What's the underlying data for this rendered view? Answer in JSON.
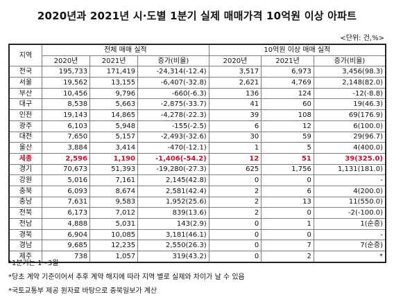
{
  "title": "2020년과 2021년 시·도별 1분기 실제 매매가격 10억원 이상 아파트",
  "unit_label": "<단위: 건,%>",
  "header": {
    "region": "지역",
    "group_all": "전체 매매 실적",
    "group_1b": "10억원 이상 매매 실적",
    "col_2020": "2020년",
    "col_2021": "2021년",
    "col_change": "증가(비율)"
  },
  "highlight_color": "#c8102e",
  "rows": [
    {
      "region": "전국",
      "a2020": "195,733",
      "a2021": "171,419",
      "achg": "-24,314(-12.4)",
      "b2020": "3,517",
      "b2021": "6,973",
      "bchg": "3,456(98.3)",
      "hl": false
    },
    {
      "region": "서울",
      "a2020": "19,562",
      "a2021": "13,155",
      "achg": "-6,407(-32.8)",
      "b2020": "2,621",
      "b2021": "4,769",
      "bchg": "2,148(82.0)",
      "hl": false
    },
    {
      "region": "부산",
      "a2020": "10,456",
      "a2021": "9,796",
      "achg": "-660(-6.3)",
      "b2020": "136",
      "b2021": "124",
      "bchg": "-12(-8.8)",
      "hl": false
    },
    {
      "region": "대구",
      "a2020": "8,538",
      "a2021": "5,663",
      "achg": "-2,875(-33.7)",
      "b2020": "41",
      "b2021": "60",
      "bchg": "19(46.3)",
      "hl": false
    },
    {
      "region": "인천",
      "a2020": "19,143",
      "a2021": "14,865",
      "achg": "-4,278(-22.3)",
      "b2020": "39",
      "b2021": "108",
      "bchg": "69(176.9)",
      "hl": false
    },
    {
      "region": "광주",
      "a2020": "6,103",
      "a2021": "5,948",
      "achg": "-155(-2.5)",
      "b2020": "6",
      "b2021": "12",
      "bchg": "6(100.0)",
      "hl": false
    },
    {
      "region": "대전",
      "a2020": "7,650",
      "a2021": "5,157",
      "achg": "-2,493(-32.6)",
      "b2020": "30",
      "b2021": "59",
      "bchg": "29(96.7)",
      "hl": false
    },
    {
      "region": "울산",
      "a2020": "3,884",
      "a2021": "3,414",
      "achg": "-470(-12.1)",
      "b2020": "1",
      "b2021": "5",
      "bchg": "4(400.0)",
      "hl": false
    },
    {
      "region": "세종",
      "a2020": "2,596",
      "a2021": "1,190",
      "achg": "-1,406(-54.2)",
      "b2020": "12",
      "b2021": "51",
      "bchg": "39(325.0)",
      "hl": true
    },
    {
      "region": "경기",
      "a2020": "70,673",
      "a2021": "51,393",
      "achg": "-19,280(-27.3)",
      "b2020": "625",
      "b2021": "1,756",
      "bchg": "1,131(181.0)",
      "hl": false
    },
    {
      "region": "강원",
      "a2020": "5,016",
      "a2021": "7,161",
      "achg": "2,145(42.8)",
      "b2020": "0",
      "b2021": "0",
      "bchg": "-",
      "hl": false
    },
    {
      "region": "충북",
      "a2020": "6,093",
      "a2021": "8,674",
      "achg": "2,581(42.4)",
      "b2020": "2",
      "b2021": "6",
      "bchg": "4(200.0)",
      "hl": false
    },
    {
      "region": "충남",
      "a2020": "7,631",
      "a2021": "9,583",
      "achg": "1,952(25.6)",
      "b2020": "2",
      "b2021": "13",
      "bchg": "11(550.0)",
      "hl": false
    },
    {
      "region": "전북",
      "a2020": "6,173",
      "a2021": "7,012",
      "achg": "839(13.6)",
      "b2020": "2",
      "b2021": "0",
      "bchg": "-2(-100.0)",
      "hl": false
    },
    {
      "region": "전남",
      "a2020": "4,888",
      "a2021": "5,031",
      "achg": "143(2.9)",
      "b2020": "0",
      "b2021": "1",
      "bchg": "1(순증)",
      "hl": false
    },
    {
      "region": "경북",
      "a2020": "6,904",
      "a2021": "10,085",
      "achg": "3,181(46.1)",
      "b2020": "0",
      "b2021": "0",
      "bchg": "-",
      "hl": false
    },
    {
      "region": "경남",
      "a2020": "9,685",
      "a2021": "12,235",
      "achg": "2,550(26.3)",
      "b2020": "0",
      "b2021": "7",
      "bchg": "7(순증)",
      "hl": false
    },
    {
      "region": "제주",
      "a2020": "738",
      "a2021": "1,057",
      "achg": "319(43.2)",
      "b2020": "0",
      "b2021": "2",
      "bchg": "*",
      "hl": false
    }
  ],
  "notes": [
    "*1분기는 1~3월",
    "*당초 계약 기준이어서 추후 계약 해지에 따라 지역 별로 실제와 차이가 날 수 있음",
    "*국토교통부 제공 원자료 바탕으로 충북일보가 계산"
  ]
}
